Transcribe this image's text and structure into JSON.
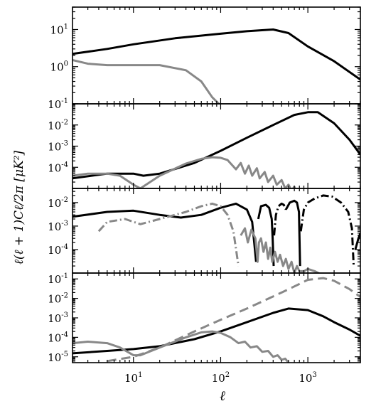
{
  "chart_data": {
    "type": "line",
    "xlabel": "ℓ",
    "ylabel": "ℓ(ℓ + 1)Cℓ/2π [μK²]",
    "x_scale": "log",
    "y_scale": "log",
    "xlim": [
      2,
      4000
    ],
    "x_ticks": [
      {
        "base": "10",
        "exp": "1",
        "value": 10
      },
      {
        "base": "10",
        "exp": "2",
        "value": 100
      },
      {
        "base": "10",
        "exp": "3",
        "value": 1000
      }
    ],
    "colors": {
      "black": "#000000",
      "gray": "#888888"
    },
    "panels": [
      {
        "ylim": [
          0.1,
          40
        ],
        "y_ticks": [
          {
            "base": "10",
            "exp": "-1",
            "value": 0.1
          },
          {
            "base": "10",
            "exp": "0",
            "value": 1
          },
          {
            "base": "10",
            "exp": "1",
            "value": 10
          }
        ],
        "series": [
          {
            "color": "black",
            "style": "solid",
            "x": [
              2,
              5,
              10,
              30,
              100,
              200,
              400,
              600,
              1000,
              2000,
              4000
            ],
            "y": [
              2.2,
              3.0,
              4.0,
              5.8,
              7.7,
              9.0,
              10.0,
              8.0,
              3.5,
              1.4,
              0.45
            ]
          },
          {
            "color": "gray",
            "style": "solid",
            "x": [
              2,
              3,
              5,
              10,
              20,
              40,
              60,
              80,
              100
            ],
            "y": [
              1.5,
              1.2,
              1.1,
              1.1,
              1.1,
              0.8,
              0.4,
              0.15,
              0.09
            ]
          }
        ]
      },
      {
        "ylim": [
          1e-05,
          0.1
        ],
        "y_ticks": [
          {
            "base": "10",
            "exp": "-4",
            "value": 0.0001
          },
          {
            "base": "10",
            "exp": "-3",
            "value": 0.001
          },
          {
            "base": "10",
            "exp": "-2",
            "value": 0.01
          }
        ],
        "series": [
          {
            "color": "black",
            "style": "solid",
            "x": [
              2,
              5,
              10,
              13,
              20,
              50,
              100,
              200,
              400,
              700,
              1000,
              1300,
              2000,
              3000,
              4000
            ],
            "y": [
              3e-05,
              5e-05,
              5e-05,
              4e-05,
              5e-05,
              0.00016,
              0.0006,
              0.0025,
              0.01,
              0.03,
              0.04,
              0.04,
              0.012,
              0.002,
              0.0004
            ]
          },
          {
            "color": "gray",
            "style": "solid",
            "x": [
              2,
              3,
              5,
              7,
              10,
              12,
              20,
              40,
              60,
              80,
              100,
              120,
              150,
              170,
              190,
              210,
              230,
              260,
              280,
              320,
              350,
              400,
              440,
              500,
              550,
              600,
              650,
              700,
              750,
              800
            ],
            "y": [
              4e-05,
              5e-05,
              5e-05,
              4e-05,
              1.5e-05,
              1e-05,
              4e-05,
              0.00015,
              0.00025,
              0.0003,
              0.00028,
              0.00022,
              8e-05,
              0.00016,
              5e-05,
              0.00012,
              4e-05,
              9e-05,
              3e-05,
              6e-05,
              2e-05,
              4e-05,
              1.5e-05,
              2.5e-05,
              1e-05,
              1.5e-05,
              8e-06,
              1.2e-05,
              6e-06,
              8e-06
            ]
          }
        ]
      },
      {
        "ylim": [
          1e-05,
          0.04
        ],
        "y_ticks": [
          {
            "base": "10",
            "exp": "-4",
            "value": 0.0001
          },
          {
            "base": "10",
            "exp": "-3",
            "value": 0.001
          },
          {
            "base": "10",
            "exp": "-2",
            "value": 0.01
          }
        ],
        "series": [
          {
            "color": "black",
            "style": "solid",
            "x": [
              2,
              5,
              10,
              20,
              35,
              60,
              100,
              150,
              200,
              230,
              255
            ],
            "y": [
              0.0025,
              0.004,
              0.0045,
              0.003,
              0.0023,
              0.003,
              0.006,
              0.009,
              0.005,
              0.0015,
              3e-05
            ]
          },
          {
            "color": "black",
            "style": "solid",
            "x": [
              270,
              290,
              330,
              360,
              385,
              395,
              405
            ],
            "y": [
              0.002,
              0.007,
              0.008,
              0.006,
              0.002,
              0.0003,
              2e-05
            ]
          },
          {
            "color": "black",
            "style": "dashdot",
            "x": [
              410,
              430,
              460,
              500,
              530,
              560
            ],
            "y": [
              0.0004,
              0.003,
              0.007,
              0.009,
              0.008,
              0.005
            ]
          },
          {
            "color": "black",
            "style": "solid",
            "x": [
              560,
              620,
              700,
              750,
              790,
              815
            ],
            "y": [
              0.005,
              0.01,
              0.012,
              0.01,
              0.004,
              2e-05
            ]
          },
          {
            "color": "black",
            "style": "dashdot",
            "x": [
              830,
              900,
              1000,
              1200,
              1500,
              1900,
              2400,
              2900,
              3200,
              3350
            ],
            "y": [
              0.0006,
              0.005,
              0.01,
              0.015,
              0.02,
              0.018,
              0.01,
              0.004,
              0.0008,
              2e-05
            ]
          },
          {
            "color": "black",
            "style": "solid",
            "x": [
              3500,
              3800,
              4000
            ],
            "y": [
              0.0001,
              0.0003,
              0.0005
            ]
          },
          {
            "color": "gray",
            "style": "dashdot",
            "x": [
              4,
              5,
              8,
              12,
              20,
              40,
              60,
              80,
              100,
              120,
              140,
              160
            ],
            "y": [
              0.0006,
              0.0015,
              0.002,
              0.0012,
              0.002,
              0.004,
              0.007,
              0.009,
              0.007,
              0.003,
              0.0006,
              2e-05
            ]
          },
          {
            "color": "gray",
            "style": "solid",
            "x": [
              170,
              190,
              205,
              225,
              250,
              265,
              275,
              290,
              310,
              330,
              350,
              370,
              390,
              420,
              450,
              480,
              520,
              560,
              600,
              650,
              700,
              750,
              800,
              900,
              1000,
              1200,
              1500
            ],
            "y": [
              0.0004,
              0.0008,
              0.0002,
              0.0007,
              0.0003,
              3e-05,
              0.0002,
              0.0003,
              8e-05,
              0.0002,
              4e-05,
              0.00012,
              3e-05,
              8e-05,
              3e-05,
              6e-05,
              2e-05,
              4e-05,
              1.5e-05,
              3e-05,
              1e-05,
              2e-05,
              1.2e-05,
              1.2e-05,
              1.5e-05,
              1.2e-05,
              8e-06
            ]
          }
        ]
      },
      {
        "ylim": [
          5e-06,
          0.2
        ],
        "y_ticks": [
          {
            "base": "10",
            "exp": "-5",
            "value": 1e-05
          },
          {
            "base": "10",
            "exp": "-4",
            "value": 0.0001
          },
          {
            "base": "10",
            "exp": "-3",
            "value": 0.001
          },
          {
            "base": "10",
            "exp": "-2",
            "value": 0.01
          },
          {
            "base": "10",
            "exp": "-1",
            "value": 0.1
          }
        ],
        "series": [
          {
            "color": "black",
            "style": "solid",
            "x": [
              2,
              5,
              10,
              20,
              50,
              100,
              200,
              400,
              600,
              1000,
              1500,
              2000,
              3000,
              4000
            ],
            "y": [
              1.5e-05,
              2e-05,
              2.5e-05,
              3.5e-05,
              8e-05,
              0.0002,
              0.0006,
              0.0018,
              0.003,
              0.0025,
              0.0012,
              0.0006,
              0.00025,
              0.00012
            ]
          },
          {
            "color": "gray",
            "style": "dashed",
            "x": [
              5,
              10,
              20,
              50,
              100,
              200,
              500,
              800,
              1000,
              1500,
              2000,
              3000,
              4000
            ],
            "y": [
              6e-06,
              1e-05,
              3e-05,
              0.0002,
              0.0008,
              0.003,
              0.02,
              0.055,
              0.09,
              0.11,
              0.08,
              0.03,
              0.012
            ]
          },
          {
            "color": "gray",
            "style": "solid",
            "x": [
              2,
              3,
              5,
              7,
              10,
              12,
              20,
              40,
              60,
              80,
              100,
              130,
              160,
              190,
              220,
              260,
              300,
              350,
              400,
              450,
              500,
              550,
              600
            ],
            "y": [
              5e-05,
              6e-05,
              5e-05,
              3e-05,
              1.2e-05,
              1.2e-05,
              3e-05,
              0.0001,
              0.00018,
              0.0002,
              0.00017,
              0.0001,
              5e-05,
              6e-05,
              3e-05,
              3.5e-05,
              1.8e-05,
              2e-05,
              1e-05,
              1.2e-05,
              7e-06,
              8e-06,
              5e-06
            ]
          }
        ]
      }
    ]
  }
}
